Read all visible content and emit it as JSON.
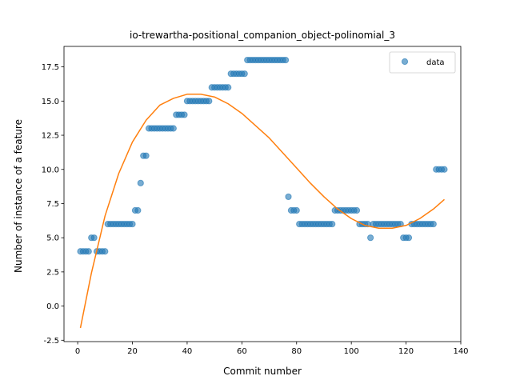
{
  "chart_data": {
    "type": "scatter",
    "title": "io-trewartha-positional_companion_object-polinomial_3",
    "xlabel": "Commit number",
    "ylabel": "Number of instance of a feature",
    "xlim": [
      -5,
      140
    ],
    "ylim": [
      -2.6,
      19.0
    ],
    "xticks": [
      0,
      20,
      40,
      60,
      80,
      100,
      120,
      140
    ],
    "yticks": [
      -2.5,
      0.0,
      2.5,
      5.0,
      7.5,
      10.0,
      12.5,
      15.0,
      17.5
    ],
    "grid": false,
    "legend": {
      "placement": "top-right",
      "entries": [
        "data"
      ]
    },
    "colors": {
      "points": "#1f77b4",
      "fit": "#ff7f0e"
    },
    "series": [
      {
        "name": "data",
        "kind": "scatter",
        "points": [
          [
            1,
            4
          ],
          [
            2,
            4
          ],
          [
            3,
            4
          ],
          [
            4,
            4
          ],
          [
            5,
            5
          ],
          [
            6,
            5
          ],
          [
            7,
            4
          ],
          [
            8,
            4
          ],
          [
            9,
            4
          ],
          [
            10,
            4
          ],
          [
            11,
            6
          ],
          [
            12,
            6
          ],
          [
            13,
            6
          ],
          [
            14,
            6
          ],
          [
            15,
            6
          ],
          [
            16,
            6
          ],
          [
            17,
            6
          ],
          [
            18,
            6
          ],
          [
            19,
            6
          ],
          [
            20,
            6
          ],
          [
            21,
            7
          ],
          [
            22,
            7
          ],
          [
            23,
            9
          ],
          [
            24,
            11
          ],
          [
            25,
            11
          ],
          [
            26,
            13
          ],
          [
            27,
            13
          ],
          [
            28,
            13
          ],
          [
            29,
            13
          ],
          [
            30,
            13
          ],
          [
            31,
            13
          ],
          [
            32,
            13
          ],
          [
            33,
            13
          ],
          [
            34,
            13
          ],
          [
            35,
            13
          ],
          [
            36,
            14
          ],
          [
            37,
            14
          ],
          [
            38,
            14
          ],
          [
            39,
            14
          ],
          [
            40,
            15
          ],
          [
            41,
            15
          ],
          [
            42,
            15
          ],
          [
            43,
            15
          ],
          [
            44,
            15
          ],
          [
            45,
            15
          ],
          [
            46,
            15
          ],
          [
            47,
            15
          ],
          [
            48,
            15
          ],
          [
            49,
            16
          ],
          [
            50,
            16
          ],
          [
            51,
            16
          ],
          [
            52,
            16
          ],
          [
            53,
            16
          ],
          [
            54,
            16
          ],
          [
            55,
            16
          ],
          [
            56,
            17
          ],
          [
            57,
            17
          ],
          [
            58,
            17
          ],
          [
            59,
            17
          ],
          [
            60,
            17
          ],
          [
            61,
            17
          ],
          [
            62,
            18
          ],
          [
            63,
            18
          ],
          [
            64,
            18
          ],
          [
            65,
            18
          ],
          [
            66,
            18
          ],
          [
            67,
            18
          ],
          [
            68,
            18
          ],
          [
            69,
            18
          ],
          [
            70,
            18
          ],
          [
            71,
            18
          ],
          [
            72,
            18
          ],
          [
            73,
            18
          ],
          [
            74,
            18
          ],
          [
            75,
            18
          ],
          [
            76,
            18
          ],
          [
            77,
            8
          ],
          [
            78,
            7
          ],
          [
            79,
            7
          ],
          [
            80,
            7
          ],
          [
            81,
            6
          ],
          [
            82,
            6
          ],
          [
            83,
            6
          ],
          [
            84,
            6
          ],
          [
            85,
            6
          ],
          [
            86,
            6
          ],
          [
            87,
            6
          ],
          [
            88,
            6
          ],
          [
            89,
            6
          ],
          [
            90,
            6
          ],
          [
            91,
            6
          ],
          [
            92,
            6
          ],
          [
            93,
            6
          ],
          [
            94,
            7
          ],
          [
            95,
            7
          ],
          [
            96,
            7
          ],
          [
            97,
            7
          ],
          [
            98,
            7
          ],
          [
            99,
            7
          ],
          [
            100,
            7
          ],
          [
            101,
            7
          ],
          [
            102,
            7
          ],
          [
            103,
            6
          ],
          [
            104,
            6
          ],
          [
            105,
            6
          ],
          [
            106,
            6
          ],
          [
            107,
            5
          ],
          [
            108,
            6
          ],
          [
            109,
            6
          ],
          [
            110,
            6
          ],
          [
            111,
            6
          ],
          [
            112,
            6
          ],
          [
            113,
            6
          ],
          [
            114,
            6
          ],
          [
            115,
            6
          ],
          [
            116,
            6
          ],
          [
            117,
            6
          ],
          [
            118,
            6
          ],
          [
            119,
            5
          ],
          [
            120,
            5
          ],
          [
            121,
            5
          ],
          [
            122,
            6
          ],
          [
            123,
            6
          ],
          [
            124,
            6
          ],
          [
            125,
            6
          ],
          [
            126,
            6
          ],
          [
            127,
            6
          ],
          [
            128,
            6
          ],
          [
            129,
            6
          ],
          [
            130,
            6
          ],
          [
            131,
            10
          ],
          [
            132,
            10
          ],
          [
            133,
            10
          ],
          [
            134,
            10
          ]
        ]
      },
      {
        "name": "",
        "kind": "line",
        "points": [
          [
            1,
            -1.6
          ],
          [
            5,
            2.4
          ],
          [
            10,
            6.6
          ],
          [
            15,
            9.7
          ],
          [
            20,
            12.0
          ],
          [
            25,
            13.6
          ],
          [
            30,
            14.7
          ],
          [
            35,
            15.2
          ],
          [
            40,
            15.5
          ],
          [
            45,
            15.5
          ],
          [
            50,
            15.3
          ],
          [
            55,
            14.8
          ],
          [
            60,
            14.1
          ],
          [
            65,
            13.2
          ],
          [
            70,
            12.3
          ],
          [
            75,
            11.2
          ],
          [
            80,
            10.1
          ],
          [
            85,
            9.0
          ],
          [
            90,
            8.0
          ],
          [
            95,
            7.1
          ],
          [
            100,
            6.4
          ],
          [
            105,
            5.9
          ],
          [
            110,
            5.7
          ],
          [
            115,
            5.7
          ],
          [
            120,
            5.9
          ],
          [
            125,
            6.4
          ],
          [
            130,
            7.1
          ],
          [
            134,
            7.8
          ]
        ]
      }
    ]
  }
}
